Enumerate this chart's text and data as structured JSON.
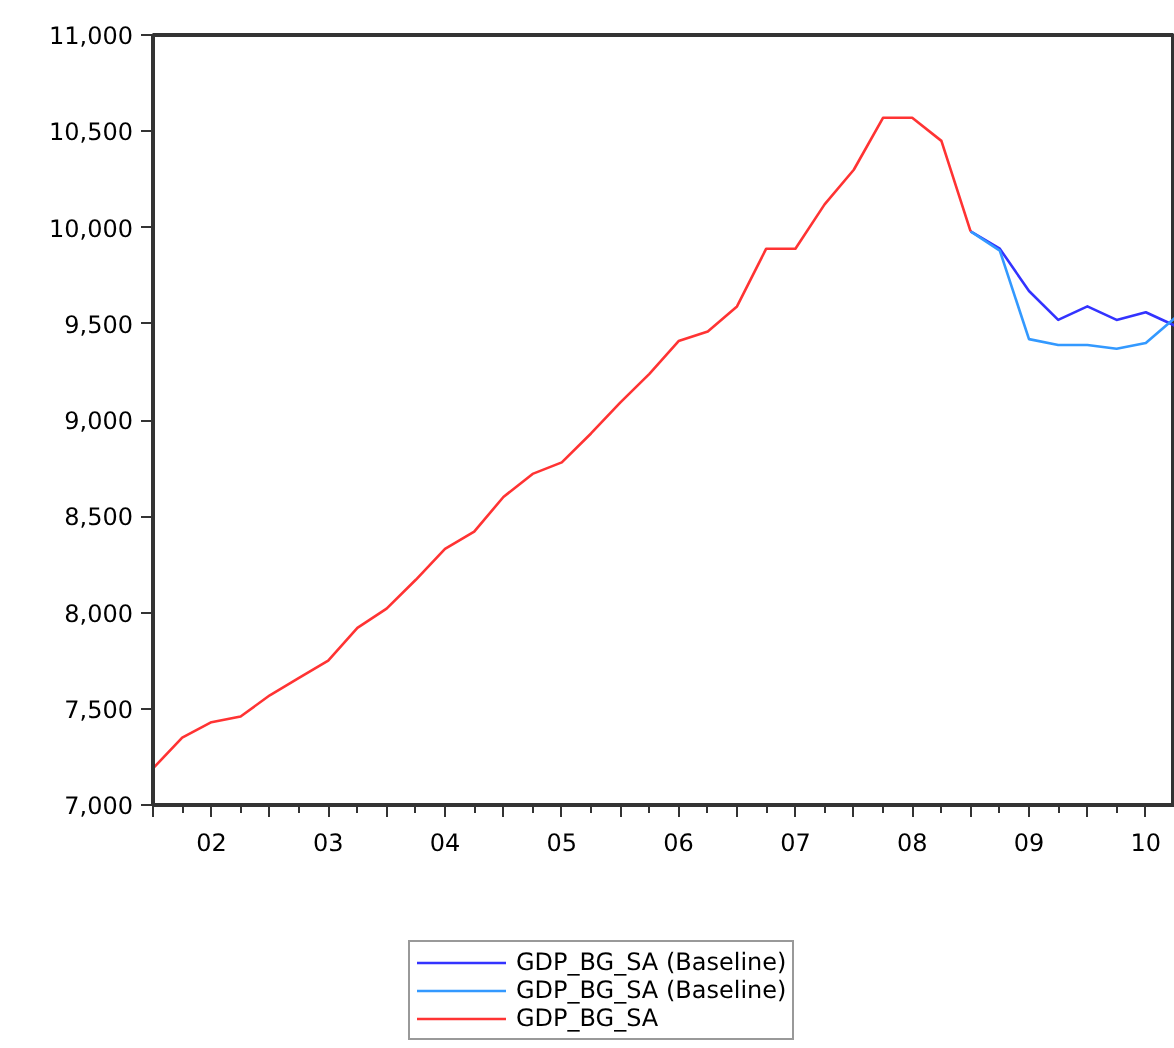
{
  "chart_data": {
    "type": "line",
    "x": [
      "2002-01",
      "2002-04",
      "2002-07",
      "2002-10",
      "2003-01",
      "2003-04",
      "2003-07",
      "2003-10",
      "2004-01",
      "2004-04",
      "2004-07",
      "2004-10",
      "2005-01",
      "2005-04",
      "2005-07",
      "2005-10",
      "2006-01",
      "2006-04",
      "2006-07",
      "2006-10",
      "2007-01",
      "2007-04",
      "2007-07",
      "2007-10",
      "2008-01",
      "2008-04",
      "2008-07",
      "2008-10",
      "2009-01",
      "2009-04",
      "2009-07",
      "2009-10",
      "2010-01",
      "2010-04",
      "2010-07",
      "2010-10"
    ],
    "series": [
      {
        "name": "GDP_BG_SA (Baseline)",
        "color": "#3333ff",
        "values": [
          null,
          null,
          null,
          null,
          null,
          null,
          null,
          null,
          null,
          null,
          null,
          null,
          null,
          null,
          null,
          null,
          null,
          null,
          null,
          null,
          null,
          null,
          null,
          null,
          null,
          null,
          null,
          null,
          9980,
          9890,
          9670,
          9520,
          9590,
          9520,
          9560,
          9490
        ]
      },
      {
        "name": "GDP_BG_SA (Baseline)",
        "color": "#3399ff",
        "values": [
          null,
          null,
          null,
          null,
          null,
          null,
          null,
          null,
          null,
          null,
          null,
          null,
          null,
          null,
          null,
          null,
          null,
          null,
          null,
          null,
          null,
          null,
          null,
          null,
          null,
          null,
          null,
          null,
          9980,
          9880,
          9420,
          9390,
          9390,
          9370,
          9400,
          9530
        ]
      },
      {
        "name": "GDP_BG_SA",
        "color": "#ff3333",
        "values": [
          7190,
          7350,
          7430,
          7460,
          7570,
          7660,
          7750,
          7920,
          8020,
          8170,
          8330,
          8420,
          8600,
          8720,
          8780,
          8930,
          9090,
          9240,
          9410,
          9460,
          9590,
          9890,
          9890,
          10120,
          10300,
          10570,
          10570,
          10450,
          9980,
          null,
          null,
          null,
          null,
          null,
          null,
          null
        ]
      }
    ],
    "xlim": [
      "2002-01",
      "2010-10"
    ],
    "xticks": [
      {
        "value": "2002-01",
        "label": null
      },
      {
        "value": "2002-07",
        "label": "02"
      },
      {
        "value": "2003-01",
        "label": null
      },
      {
        "value": "2003-07",
        "label": "03"
      },
      {
        "value": "2004-01",
        "label": null
      },
      {
        "value": "2004-07",
        "label": "04"
      },
      {
        "value": "2005-01",
        "label": null
      },
      {
        "value": "2005-07",
        "label": "05"
      },
      {
        "value": "2006-01",
        "label": null
      },
      {
        "value": "2006-07",
        "label": "06"
      },
      {
        "value": "2007-01",
        "label": null
      },
      {
        "value": "2007-07",
        "label": "07"
      },
      {
        "value": "2008-01",
        "label": null
      },
      {
        "value": "2008-07",
        "label": "08"
      },
      {
        "value": "2009-01",
        "label": null
      },
      {
        "value": "2009-07",
        "label": "09"
      },
      {
        "value": "2010-01",
        "label": null
      },
      {
        "value": "2010-07",
        "label": "10"
      }
    ],
    "ylim": [
      7000,
      11000
    ],
    "yticks": [
      {
        "value": 7000,
        "label": "7,000"
      },
      {
        "value": 7500,
        "label": "7,500"
      },
      {
        "value": 8000,
        "label": "8,000"
      },
      {
        "value": 8500,
        "label": "8,500"
      },
      {
        "value": 9000,
        "label": "9,000"
      },
      {
        "value": 9500,
        "label": "9,500"
      },
      {
        "value": 10000,
        "label": "10,000"
      },
      {
        "value": 10500,
        "label": "10,500"
      },
      {
        "value": 11000,
        "label": "11,000"
      }
    ],
    "grid": false,
    "legend": "bottom",
    "marker": "none",
    "line_style": "solid"
  }
}
